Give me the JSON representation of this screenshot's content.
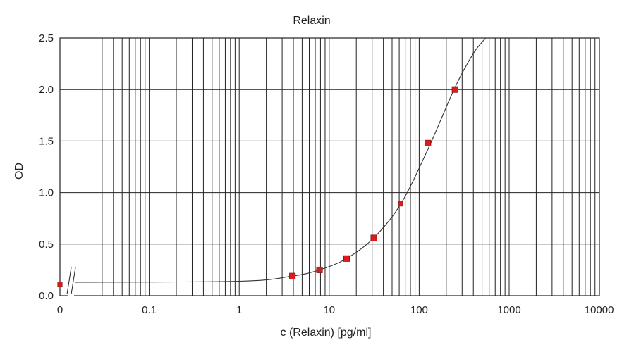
{
  "chart_data": {
    "type": "scatter",
    "title": "Relaxin",
    "xlabel": "c (Relaxin) [pg/ml]",
    "ylabel": "OD",
    "x_scale": "log",
    "x_axis_break": true,
    "xlim": [
      0.01,
      10000
    ],
    "ylim": [
      0,
      2.5
    ],
    "x_ticks": [
      {
        "value": 0,
        "label": "0"
      },
      {
        "value": 0.1,
        "label": "0.1"
      },
      {
        "value": 1,
        "label": "1"
      },
      {
        "value": 10,
        "label": "10"
      },
      {
        "value": 100,
        "label": "100"
      },
      {
        "value": 1000,
        "label": "1000"
      },
      {
        "value": 10000,
        "label": "10000"
      }
    ],
    "y_ticks": [
      {
        "value": 0,
        "label": "0.0"
      },
      {
        "value": 0.5,
        "label": "0.5"
      },
      {
        "value": 1.0,
        "label": "1.0"
      },
      {
        "value": 1.5,
        "label": "1.5"
      },
      {
        "value": 2.0,
        "label": "2.0"
      },
      {
        "value": 2.5,
        "label": "2.5"
      }
    ],
    "grid": true,
    "series": [
      {
        "color": "#d91c1c",
        "points": [
          {
            "x": 0,
            "y": 0.11
          },
          {
            "x": 3.9,
            "y": 0.19
          },
          {
            "x": 7.8,
            "y": 0.25
          },
          {
            "x": 15.6,
            "y": 0.36
          },
          {
            "x": 31.3,
            "y": 0.56
          },
          {
            "x": 62.5,
            "y": 0.89
          },
          {
            "x": 125,
            "y": 1.48
          },
          {
            "x": 250,
            "y": 2.0
          }
        ]
      }
    ],
    "fit_curve": {
      "type": "4PL",
      "baseline": 0.13,
      "points": [
        {
          "x": 1,
          "y": 0.14
        },
        {
          "x": 3.9,
          "y": 0.19
        },
        {
          "x": 7.8,
          "y": 0.25
        },
        {
          "x": 15.6,
          "y": 0.36
        },
        {
          "x": 31.3,
          "y": 0.56
        },
        {
          "x": 62.5,
          "y": 0.89
        },
        {
          "x": 125,
          "y": 1.42
        },
        {
          "x": 250,
          "y": 2.02
        },
        {
          "x": 400,
          "y": 2.35
        },
        {
          "x": 550,
          "y": 2.5
        }
      ]
    }
  }
}
